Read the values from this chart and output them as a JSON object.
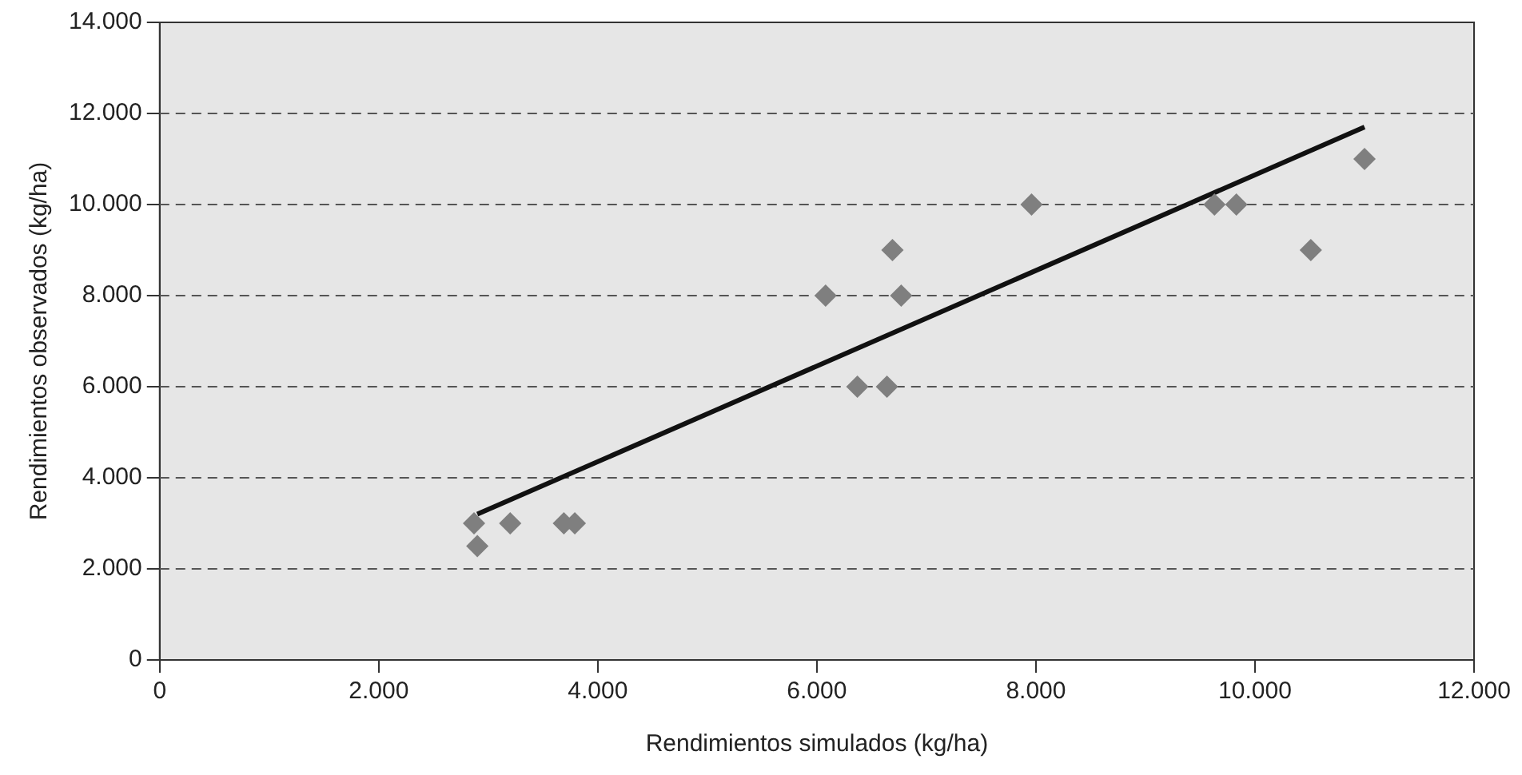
{
  "chart_data": {
    "type": "scatter",
    "xlabel": "Rendimientos simulados (kg/ha)",
    "ylabel": "Rendimientos observados (kg/ha)",
    "xlim": [
      0,
      12000
    ],
    "ylim": [
      0,
      14000
    ],
    "xticks": [
      0,
      {
        "value": 2000,
        "label": "2.000"
      },
      {
        "value": 4000,
        "label": "4.000"
      },
      {
        "value": 6000,
        "label": "6.000"
      },
      {
        "value": 8000,
        "label": "8.000"
      },
      {
        "value": 10000,
        "label": "10.000"
      },
      {
        "value": 12000,
        "label": "12.000"
      }
    ],
    "yticks": [
      0,
      {
        "value": 2000,
        "label": "2.000"
      },
      {
        "value": 4000,
        "label": "4.000"
      },
      {
        "value": 6000,
        "label": "6.000"
      },
      {
        "value": 8000,
        "label": "8.000"
      },
      {
        "value": 10000,
        "label": "10.000"
      },
      {
        "value": 12000,
        "label": "12.000"
      },
      {
        "value": 14000,
        "label": "14.000"
      }
    ],
    "grid": "y",
    "legend": false,
    "marker": "diamond",
    "series": [
      {
        "type": "scatter",
        "color": "#7f7f7f",
        "x": [
          2870,
          2900,
          3200,
          3690,
          3790,
          6080,
          6370,
          6640,
          6690,
          6770,
          7960,
          9630,
          9830,
          10510,
          11000
        ],
        "values": [
          3000,
          2500,
          3000,
          3000,
          3000,
          8000,
          6000,
          6000,
          9000,
          8000,
          10000,
          10000,
          10000,
          9000,
          11000
        ]
      },
      {
        "type": "line",
        "color": "#111111",
        "x": [
          2900,
          11000
        ],
        "values": [
          3200,
          11700
        ],
        "marker": "none",
        "line_style": "solid"
      }
    ]
  }
}
